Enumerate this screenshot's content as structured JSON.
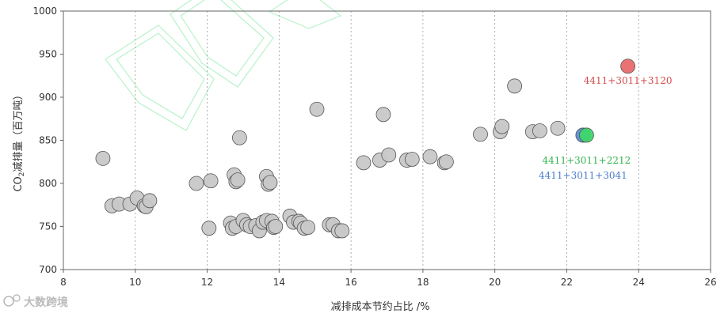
{
  "chart_data": {
    "type": "scatter",
    "xlabel": "减排成本节约占比 /%",
    "ylabel_main": "CO",
    "ylabel_sub": "2",
    "ylabel_rest": "减排量（百万吨）",
    "xlim": [
      8,
      26
    ],
    "ylim": [
      700,
      1000
    ],
    "x_ticks": [
      8,
      10,
      12,
      14,
      16,
      18,
      20,
      22,
      24,
      26
    ],
    "y_ticks": [
      700,
      750,
      800,
      850,
      900,
      950,
      1000
    ],
    "grid": "vertical-dashed",
    "series": [
      {
        "color": "#c8c8c8",
        "points": [
          [
            9.1,
            829
          ],
          [
            9.35,
            774
          ],
          [
            9.55,
            776
          ],
          [
            9.85,
            776
          ],
          [
            10.05,
            783
          ],
          [
            10.25,
            774
          ],
          [
            10.3,
            773
          ],
          [
            10.4,
            780
          ],
          [
            11.7,
            800
          ],
          [
            12.1,
            803
          ],
          [
            12.05,
            748
          ],
          [
            12.65,
            754
          ],
          [
            12.7,
            748
          ],
          [
            12.75,
            810
          ],
          [
            12.8,
            802
          ],
          [
            12.85,
            804
          ],
          [
            12.9,
            853
          ],
          [
            12.8,
            750
          ],
          [
            13.0,
            757
          ],
          [
            13.1,
            752
          ],
          [
            13.2,
            750
          ],
          [
            13.35,
            751
          ],
          [
            13.45,
            745
          ],
          [
            13.55,
            755
          ],
          [
            13.65,
            757
          ],
          [
            13.65,
            808
          ],
          [
            13.7,
            799
          ],
          [
            13.75,
            801
          ],
          [
            13.8,
            756
          ],
          [
            13.85,
            749
          ],
          [
            13.9,
            750
          ],
          [
            14.3,
            762
          ],
          [
            14.4,
            755
          ],
          [
            14.55,
            756
          ],
          [
            14.6,
            754
          ],
          [
            14.7,
            748
          ],
          [
            14.8,
            749
          ],
          [
            15.05,
            886
          ],
          [
            15.4,
            752
          ],
          [
            15.5,
            752
          ],
          [
            15.65,
            745
          ],
          [
            15.75,
            745
          ],
          [
            16.35,
            824
          ],
          [
            16.8,
            827
          ],
          [
            16.9,
            880
          ],
          [
            17.05,
            833
          ],
          [
            17.55,
            827
          ],
          [
            17.7,
            828
          ],
          [
            18.2,
            831
          ],
          [
            18.6,
            824
          ],
          [
            18.65,
            825
          ],
          [
            19.6,
            857
          ],
          [
            20.15,
            860
          ],
          [
            20.2,
            866
          ],
          [
            20.55,
            913
          ],
          [
            21.05,
            860
          ],
          [
            21.25,
            861
          ],
          [
            21.75,
            864
          ]
        ]
      },
      {
        "name": "4411+3011+3041",
        "color": "#5b8fd6",
        "label_color": "#4a7cc9",
        "points": [
          [
            22.45,
            856
          ]
        ]
      },
      {
        "name": "4411+3011+2212",
        "color": "#3ed66a",
        "label_color": "#33b54c",
        "points": [
          [
            22.55,
            856
          ]
        ]
      },
      {
        "name": "4411+3011+3120",
        "color": "#e86a6a",
        "label_color": "#d64a4a",
        "points": [
          [
            23.7,
            936
          ]
        ]
      }
    ]
  },
  "watermark": {
    "text": "大数跨境"
  }
}
